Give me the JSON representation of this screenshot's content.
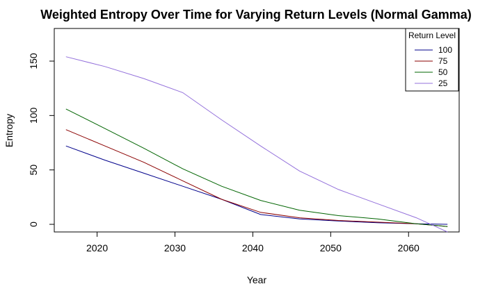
{
  "chart_data": {
    "type": "line",
    "title": "Weighted Entropy Over Time for Varying Return Levels (Normal Gamma)",
    "xlabel": "Year",
    "ylabel": "Entropy",
    "xlim": [
      2014.5,
      2066.5
    ],
    "ylim": [
      -7,
      180
    ],
    "x_ticks": [
      2020,
      2030,
      2040,
      2050,
      2060
    ],
    "y_ticks": [
      0,
      50,
      100,
      150
    ],
    "grid": false,
    "legend": {
      "title": "Return Level",
      "position": "top-right"
    },
    "x": [
      2016,
      2021,
      2026,
      2031,
      2036,
      2041,
      2046,
      2051,
      2056,
      2061,
      2065
    ],
    "series": [
      {
        "name": "100",
        "color": "#00008B",
        "values": [
          72,
          59,
          47,
          35,
          23,
          9,
          5,
          3,
          1.5,
          0.5,
          0
        ]
      },
      {
        "name": "75",
        "color": "#8B0000",
        "values": [
          87,
          72,
          57,
          40,
          23,
          11,
          6,
          3.5,
          2,
          0.5,
          -2
        ]
      },
      {
        "name": "50",
        "color": "#006400",
        "values": [
          106,
          88,
          70,
          51,
          35,
          22,
          13,
          8,
          5,
          0.5,
          -2
        ]
      },
      {
        "name": "25",
        "color": "#9370DB",
        "values": [
          154,
          145,
          134,
          121,
          96,
          72,
          49,
          32,
          19,
          6,
          -7
        ]
      }
    ]
  }
}
